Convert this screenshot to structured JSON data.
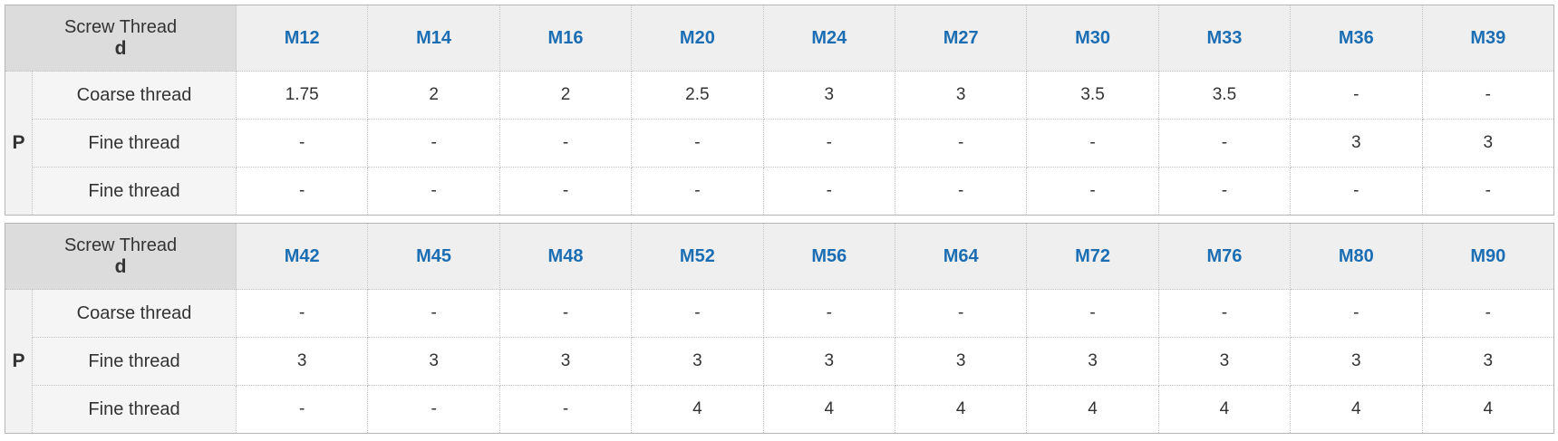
{
  "tables": [
    {
      "header_label": "Screw Thread",
      "header_symbol": "d",
      "sizes": [
        "M12",
        "M14",
        "M16",
        "M20",
        "M24",
        "M27",
        "M30",
        "M33",
        "M36",
        "M39"
      ],
      "group_label": "P",
      "rows": [
        {
          "label": "Coarse thread",
          "values": [
            "1.75",
            "2",
            "2",
            "2.5",
            "3",
            "3",
            "3.5",
            "3.5",
            "-",
            "-"
          ]
        },
        {
          "label": "Fine thread",
          "values": [
            "-",
            "-",
            "-",
            "-",
            "-",
            "-",
            "-",
            "-",
            "3",
            "3"
          ]
        },
        {
          "label": "Fine thread",
          "values": [
            "-",
            "-",
            "-",
            "-",
            "-",
            "-",
            "-",
            "-",
            "-",
            "-"
          ]
        }
      ]
    },
    {
      "header_label": "Screw Thread",
      "header_symbol": "d",
      "sizes": [
        "M42",
        "M45",
        "M48",
        "M52",
        "M56",
        "M64",
        "M72",
        "M76",
        "M80",
        "M90"
      ],
      "group_label": "P",
      "rows": [
        {
          "label": "Coarse thread",
          "values": [
            "-",
            "-",
            "-",
            "-",
            "-",
            "-",
            "-",
            "-",
            "-",
            "-"
          ]
        },
        {
          "label": "Fine thread",
          "values": [
            "3",
            "3",
            "3",
            "3",
            "3",
            "3",
            "3",
            "3",
            "3",
            "3"
          ]
        },
        {
          "label": "Fine thread",
          "values": [
            "-",
            "-",
            "-",
            "4",
            "4",
            "4",
            "4",
            "4",
            "4",
            "4"
          ]
        }
      ]
    }
  ]
}
